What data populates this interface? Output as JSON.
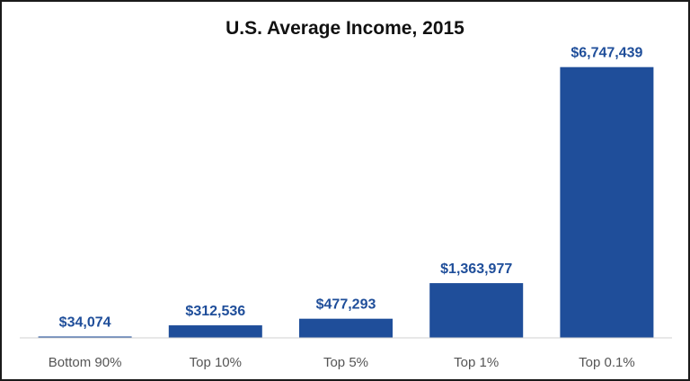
{
  "chart_data": {
    "type": "bar",
    "title": "U.S. Average Income, 2015",
    "categories": [
      "Bottom 90%",
      "Top 10%",
      "Top 5%",
      "Top 1%",
      "Top 0.1%"
    ],
    "values": [
      34074,
      312536,
      477293,
      1363977,
      6747439
    ],
    "value_labels": [
      "$34,074",
      "$312,536",
      "$477,293",
      "$1,363,977",
      "$6,747,439"
    ],
    "xlabel": "",
    "ylabel": "",
    "ylim": [
      0,
      7300000
    ],
    "grid": false,
    "legend": "none",
    "bar_color": "#1f4e9a",
    "label_color": "#1f4e9a"
  }
}
